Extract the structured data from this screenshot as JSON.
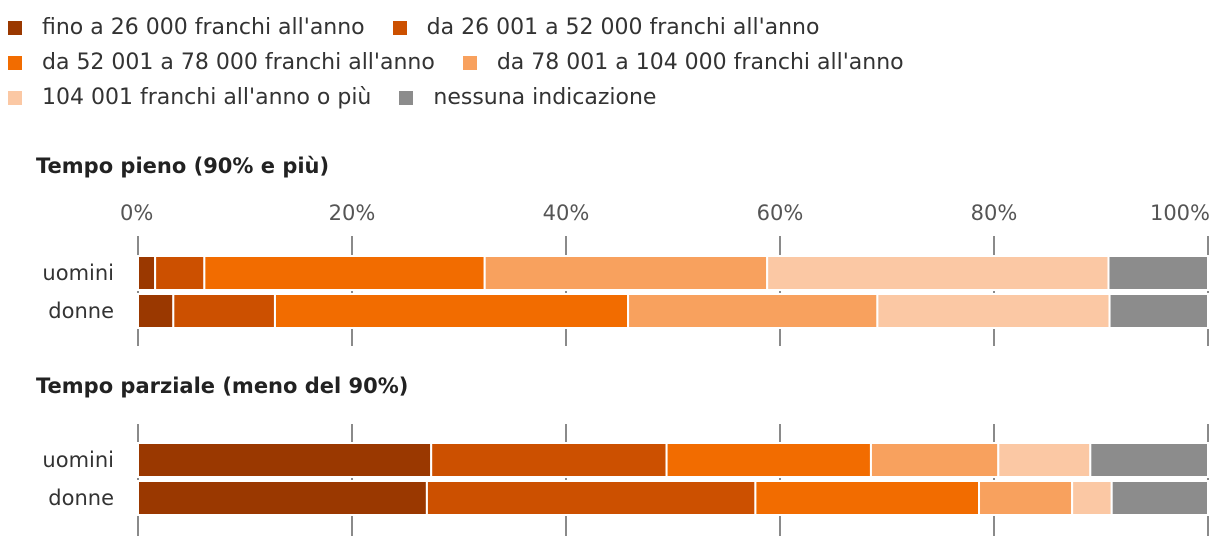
{
  "legend": {
    "items": [
      {
        "label": "fino a 26 000 franchi all'anno",
        "color": "#9a3800"
      },
      {
        "label": "da 26 001 a 52 000 franchi all'anno",
        "color": "#cc5000"
      },
      {
        "label": "da 52 001 a 78 000 franchi all'anno",
        "color": "#f26c00"
      },
      {
        "label": "da 78 001 a 104 000 franchi all'anno",
        "color": "#f8a15e"
      },
      {
        "label": "104 001 franchi all'anno o più",
        "color": "#fbc8a4"
      },
      {
        "label": "nessuna indicazione",
        "color": "#8c8c8c"
      }
    ]
  },
  "chart_data": [
    {
      "type": "bar",
      "orientation": "horizontal",
      "stacked": true,
      "title": "Tempo pieno (90% e più)",
      "categories": [
        "uomini",
        "donne"
      ],
      "xlim": [
        0,
        100
      ],
      "ticks": [
        "0%",
        "20%",
        "40%",
        "60%",
        "80%",
        "100%"
      ],
      "series": [
        {
          "name": "fino a 26 000 franchi all'anno",
          "values": [
            1.6,
            3.3
          ]
        },
        {
          "name": "da 26 001 a 52 000 franchi all'anno",
          "values": [
            4.6,
            9.5
          ]
        },
        {
          "name": "da 52 001 a 78 000 franchi all'anno",
          "values": [
            26.2,
            33.0
          ]
        },
        {
          "name": "da 78 001 a 104 000 franchi all'anno",
          "values": [
            26.4,
            23.3
          ]
        },
        {
          "name": "104 001 franchi all'anno o più",
          "values": [
            31.9,
            21.7
          ]
        },
        {
          "name": "nessuna indicazione",
          "values": [
            9.3,
            9.2
          ]
        }
      ]
    },
    {
      "type": "bar",
      "orientation": "horizontal",
      "stacked": true,
      "title": "Tempo parziale (meno del 90%)",
      "categories": [
        "uomini",
        "donne"
      ],
      "xlim": [
        0,
        100
      ],
      "ticks": [],
      "series": [
        {
          "name": "fino a 26 000 franchi all'anno",
          "values": [
            27.4,
            27.0
          ]
        },
        {
          "name": "da 26 001 a 52 000 franchi all'anno",
          "values": [
            22.0,
            30.7
          ]
        },
        {
          "name": "da 52 001 a 78 000 franchi all'anno",
          "values": [
            19.1,
            20.9
          ]
        },
        {
          "name": "da 78 001 a 104 000 franchi all'anno",
          "values": [
            11.9,
            8.7
          ]
        },
        {
          "name": "104 001 franchi all'anno o più",
          "values": [
            8.6,
            3.7
          ]
        },
        {
          "name": "nessuna indicazione",
          "values": [
            11.0,
            9.0
          ]
        }
      ]
    }
  ]
}
